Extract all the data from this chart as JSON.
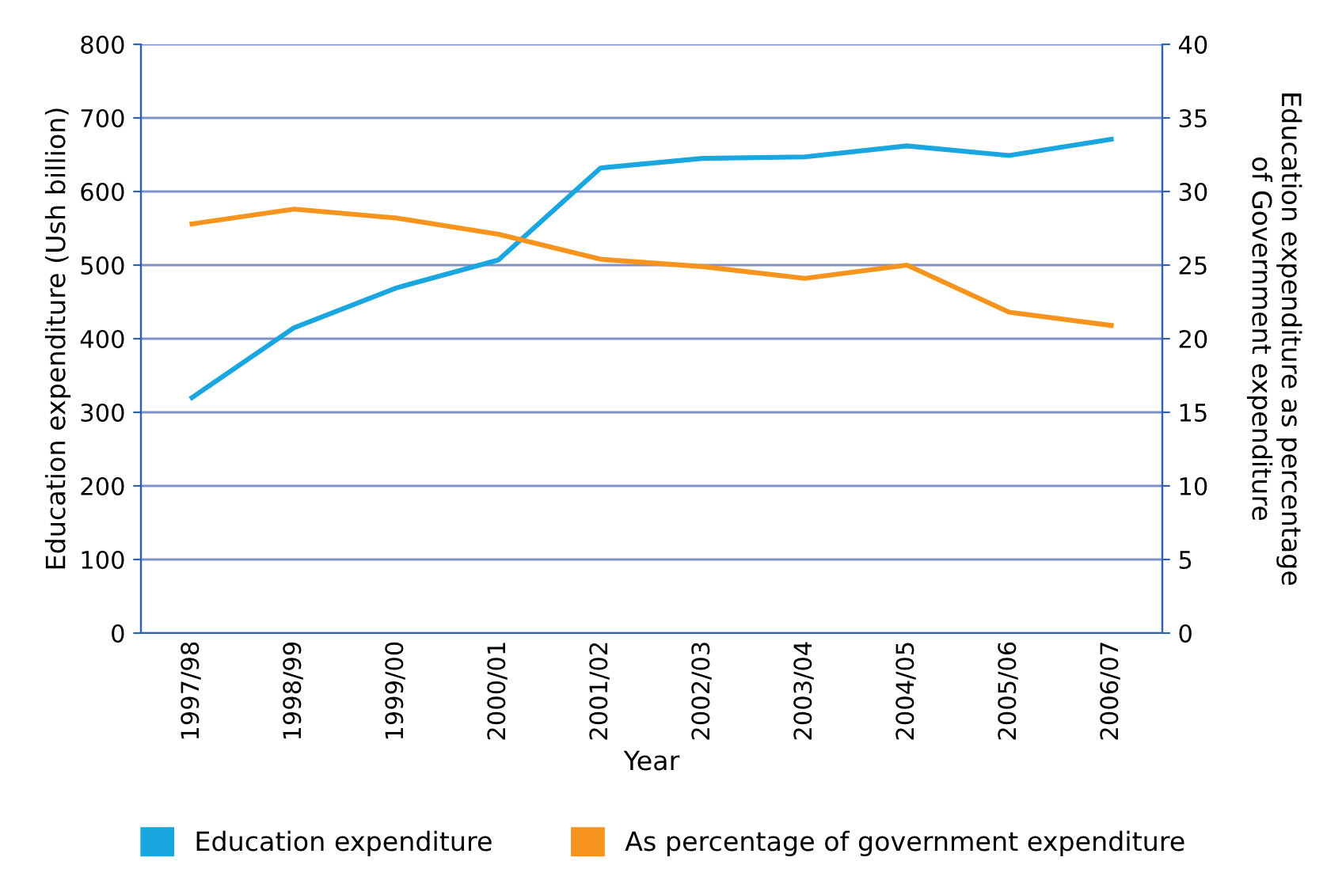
{
  "chart_data": {
    "type": "line",
    "xlabel": "Year",
    "ylabel": "Education expenditure (Ush billion)",
    "y2label": "Education expenditure as percentage\nof Government expenditure",
    "categories": [
      "1997/98",
      "1998/99",
      "1999/00",
      "2000/01",
      "2001/02",
      "2002/03",
      "2003/04",
      "2004/05",
      "2005/06",
      "2006/07"
    ],
    "series": [
      {
        "name": "Education expenditure",
        "color": "#1aa7e0",
        "values": [
          320,
          415,
          469,
          507,
          632,
          645,
          647,
          662,
          649,
          671
        ]
      },
      {
        "name": "As percentage of government expenditure",
        "color": "#f7941d",
        "axis": "y2",
        "values": [
          27.8,
          28.8,
          28.2,
          27.1,
          25.4,
          24.9,
          24.1,
          25.0,
          21.8,
          20.9
        ]
      }
    ],
    "ylim": [
      0,
      800
    ],
    "yticks": [
      0,
      100,
      200,
      300,
      400,
      500,
      600,
      700,
      800
    ],
    "y2lim": [
      0,
      40
    ],
    "y2ticks": [
      0,
      5,
      10,
      15,
      20,
      25,
      30,
      35,
      40
    ],
    "grid": "y",
    "legend": "bottom",
    "marker": "none",
    "line_style": "solid"
  }
}
